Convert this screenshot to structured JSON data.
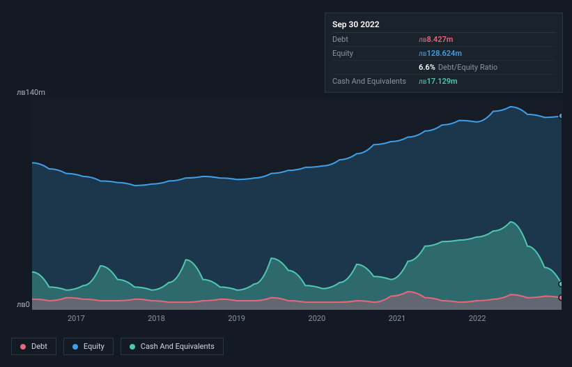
{
  "tooltip": {
    "title": "Sep 30 2022",
    "currency_prefix": "лв",
    "rows": [
      {
        "label": "Debt",
        "value": "8.427m",
        "color": "#e8677a"
      },
      {
        "label": "Equity",
        "value": "128.624m",
        "color": "#3ea0e8"
      },
      {
        "label": "",
        "value": "6.6%",
        "extra": "Debt/Equity Ratio",
        "color": "#ffffff",
        "no_prefix": true
      },
      {
        "label": "Cash And Equivalents",
        "value": "17.129m",
        "color": "#4fc9b0"
      }
    ]
  },
  "chart": {
    "type": "area",
    "background_color": "#131a23",
    "plot_color": "#151c26",
    "ymax": 140,
    "ymin": 0,
    "ylabels": [
      {
        "text": "лв140m",
        "v": 140
      },
      {
        "text": "лв0",
        "v": 0
      }
    ],
    "xticks": [
      "2017",
      "2018",
      "2019",
      "2020",
      "2021",
      "2022"
    ],
    "series": [
      {
        "name": "Equity",
        "color": "#3ea0e8",
        "fill": "rgba(62,160,232,0.20)",
        "values": [
          97,
          93,
          90,
          88,
          85,
          84,
          82,
          83,
          85,
          87,
          88,
          87,
          86,
          87,
          90,
          92,
          94,
          95,
          99,
          103,
          109,
          111,
          114,
          118,
          122,
          125,
          124,
          131,
          134,
          129,
          127,
          128
        ]
      },
      {
        "name": "Cash And Equivalents",
        "color": "#4fc9b0",
        "fill": "rgba(79,201,176,0.35)",
        "values": [
          25,
          15,
          13,
          16,
          29,
          20,
          15,
          13,
          18,
          33,
          20,
          15,
          13,
          17,
          34,
          26,
          16,
          14,
          18,
          30,
          22,
          20,
          32,
          42,
          45,
          46,
          48,
          52,
          58,
          42,
          28,
          17
        ]
      },
      {
        "name": "Debt",
        "color": "#e8677a",
        "fill": "rgba(232,103,122,0.28)",
        "values": [
          7,
          6,
          8,
          7,
          6,
          6,
          7,
          6,
          5,
          5,
          6,
          7,
          6,
          6,
          8,
          6,
          5,
          5,
          5,
          6,
          5,
          9,
          12,
          8,
          6,
          5,
          6,
          7,
          10,
          8,
          9,
          8
        ]
      }
    ],
    "marker_x_index": 31,
    "marker_series": [
      "Equity",
      "Cash And Equivalents",
      "Debt"
    ]
  },
  "legend": [
    {
      "label": "Debt",
      "color": "#e8677a"
    },
    {
      "label": "Equity",
      "color": "#3ea0e8"
    },
    {
      "label": "Cash And Equivalents",
      "color": "#4fc9b0"
    }
  ],
  "styling": {
    "text_color": "#a8b2bd",
    "muted_text_color": "#8a95a1",
    "border_color": "#2a3642",
    "label_fontsize": 11,
    "tooltip_fontsize": 12
  }
}
